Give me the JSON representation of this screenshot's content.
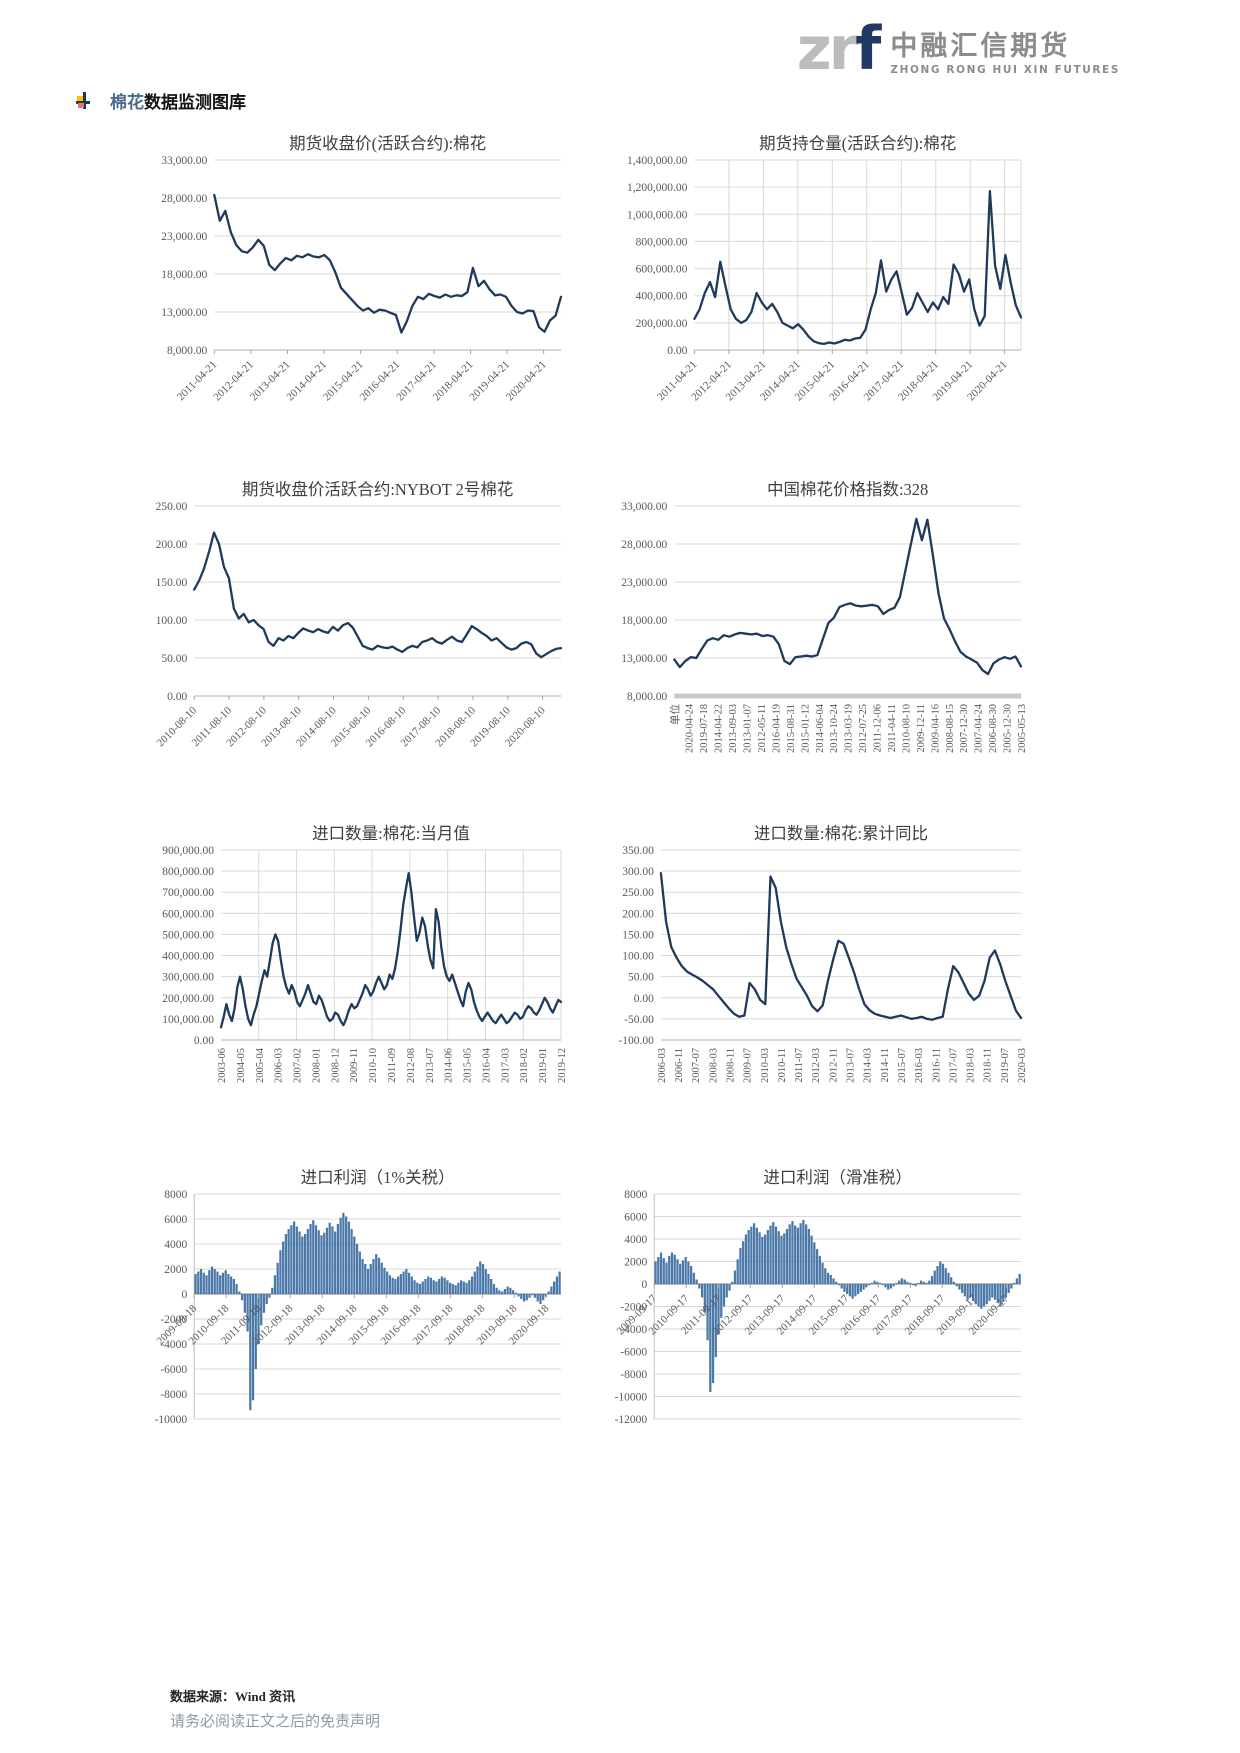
{
  "header": {
    "logo_zr": "zr",
    "logo_f": "f",
    "brand_cn": "中融汇信期货",
    "brand_en": "ZHONG RONG HUI XIN FUTURES"
  },
  "section": {
    "title_highlight": "棉花",
    "title_rest": "数据监测图库"
  },
  "footer": {
    "source": "数据来源：Wind 资讯",
    "disclaimer": "请务必阅读正文之后的免责声明"
  },
  "colors": {
    "line": "#1f3a5a",
    "bar": "#4a78a8",
    "grid": "#d9d9d9",
    "axis": "#bfbfbf",
    "zero_axis": "#9a9a9a",
    "thick_axis": "#c9c9c9",
    "tick_text": "#595959",
    "title_text": "#3f3f3f"
  },
  "chart_data": [
    {
      "name": "futures-close-price-cotton",
      "type": "line",
      "title": "期货收盘价(活跃合约):棉花",
      "ylim": [
        8000,
        33000
      ],
      "y_tick_values": [
        33000,
        28000,
        23000,
        18000,
        13000,
        8000
      ],
      "y_tick_labels": [
        "33,000.00",
        "28,000.00",
        "23,000.00",
        "18,000.00",
        "13,000.00",
        "8,000.00"
      ],
      "x_labels": [
        "2011-04-21",
        "2012-04-21",
        "2013-04-21",
        "2014-04-21",
        "2015-04-21",
        "2016-04-21",
        "2017-04-21",
        "2018-04-21",
        "2019-04-21",
        "2020-04-21"
      ],
      "x_label_style": "rot45",
      "grid_vertical": false,
      "axis_thick": false,
      "values": [
        28400,
        25000,
        26300,
        23500,
        21800,
        21000,
        20800,
        21500,
        22500,
        21700,
        19200,
        18500,
        19400,
        20100,
        19800,
        20400,
        20200,
        20600,
        20300,
        20200,
        20500,
        19800,
        18200,
        16200,
        15400,
        14600,
        13800,
        13200,
        13500,
        12900,
        13300,
        13200,
        12900,
        12600,
        10300,
        11800,
        13800,
        15000,
        14700,
        15400,
        15100,
        14900,
        15300,
        15000,
        15200,
        15100,
        15600,
        18800,
        16400,
        17100,
        16000,
        15200,
        15300,
        15000,
        13800,
        13000,
        12800,
        13200,
        13100,
        11000,
        10400,
        11900,
        12500,
        15000
      ]
    },
    {
      "name": "futures-open-interest-cotton",
      "type": "line",
      "title": "期货持仓量(活跃合约):棉花",
      "ylim": [
        0,
        1400000
      ],
      "y_tick_values": [
        1400000,
        1200000,
        1000000,
        800000,
        600000,
        400000,
        200000,
        0
      ],
      "y_tick_labels": [
        "1,400,000.00",
        "1,200,000.00",
        "1,000,000.00",
        "800,000.00",
        "600,000.00",
        "400,000.00",
        "200,000.00",
        "0.00"
      ],
      "x_labels": [
        "2011-04-21",
        "2012-04-21",
        "2013-04-21",
        "2014-04-21",
        "2015-04-21",
        "2016-04-21",
        "2017-04-21",
        "2018-04-21",
        "2019-04-21",
        "2020-04-21"
      ],
      "x_label_style": "rot45",
      "grid_vertical": true,
      "axis_thick": false,
      "values": [
        230000,
        300000,
        420000,
        500000,
        390000,
        650000,
        470000,
        300000,
        230000,
        200000,
        220000,
        280000,
        420000,
        350000,
        300000,
        340000,
        280000,
        200000,
        180000,
        160000,
        190000,
        150000,
        100000,
        65000,
        50000,
        45000,
        55000,
        48000,
        60000,
        75000,
        70000,
        85000,
        90000,
        150000,
        300000,
        420000,
        660000,
        430000,
        520000,
        580000,
        420000,
        260000,
        310000,
        420000,
        350000,
        280000,
        350000,
        300000,
        390000,
        340000,
        630000,
        560000,
        430000,
        520000,
        300000,
        180000,
        250000,
        1170000,
        620000,
        450000,
        700000,
        500000,
        330000,
        240000
      ]
    },
    {
      "name": "futures-close-price-nybot-cotton2",
      "type": "line",
      "title": "期货收盘价活跃合约:NYBOT 2号棉花",
      "ylim": [
        0,
        250
      ],
      "y_tick_values": [
        250,
        200,
        150,
        100,
        50,
        0
      ],
      "y_tick_labels": [
        "250.00",
        "200.00",
        "150.00",
        "100.00",
        "50.00",
        "0.00"
      ],
      "x_labels": [
        "2010-08-10",
        "2011-08-10",
        "2012-08-10",
        "2013-08-10",
        "2014-08-10",
        "2015-08-10",
        "2016-08-10",
        "2017-08-10",
        "2018-08-10",
        "2019-08-10",
        "2020-08-10"
      ],
      "x_label_style": "rot45",
      "grid_vertical": false,
      "axis_thick": false,
      "values": [
        140,
        152,
        168,
        190,
        215,
        200,
        170,
        155,
        115,
        102,
        108,
        97,
        100,
        93,
        88,
        71,
        66,
        76,
        73,
        79,
        76,
        83,
        89,
        86,
        84,
        88,
        85,
        83,
        91,
        86,
        93,
        96,
        90,
        78,
        66,
        63,
        61,
        66,
        64,
        63,
        65,
        61,
        58,
        63,
        66,
        64,
        71,
        73,
        76,
        71,
        69,
        74,
        78,
        73,
        71,
        81,
        92,
        88,
        83,
        79,
        73,
        76,
        70,
        64,
        61,
        63,
        69,
        71,
        68,
        56,
        51,
        55,
        59,
        62,
        63
      ]
    },
    {
      "name": "china-cotton-price-index-328",
      "type": "line",
      "title": "中国棉花价格指数:328",
      "ylim": [
        8000,
        33000
      ],
      "y_tick_values": [
        33000,
        28000,
        23000,
        18000,
        13000,
        8000
      ],
      "y_tick_labels": [
        "33,000.00",
        "28,000.00",
        "23,000.00",
        "18,000.00",
        "13,000.00",
        "8,000.00"
      ],
      "x_labels": [
        "单位",
        "2020-04-24",
        "2019-07-18",
        "2014-04-22",
        "2013-09-03",
        "2013-01-07",
        "2012-05-11",
        "2016-04-19",
        "2015-08-31",
        "2015-01-12",
        "2014-06-04",
        "2013-10-24",
        "2013-03-19",
        "2012-07-25",
        "2011-12-06",
        "2011-04-11",
        "2010-08-10",
        "2009-12-11",
        "2009-04-16",
        "2008-08-15",
        "2007-12-30",
        "2007-04-24",
        "2006-08-30",
        "2005-12-30",
        "2005-05-13"
      ],
      "x_label_style": "vert",
      "grid_vertical": false,
      "axis_thick": true,
      "values": [
        12800,
        11800,
        12600,
        13100,
        13000,
        14200,
        15300,
        15600,
        15400,
        16000,
        15800,
        16100,
        16300,
        16200,
        16100,
        16200,
        15900,
        16000,
        15800,
        14800,
        12600,
        12200,
        13100,
        13200,
        13300,
        13200,
        13400,
        15500,
        17600,
        18300,
        19700,
        20000,
        20200,
        19900,
        19800,
        19900,
        20000,
        19800,
        18800,
        19300,
        19600,
        21000,
        24500,
        28000,
        31300,
        28500,
        31200,
        26500,
        21500,
        18200,
        16800,
        15200,
        13800,
        13200,
        12800,
        12400,
        11400,
        10900,
        12300,
        12800,
        13100,
        12900,
        13200,
        11900
      ]
    },
    {
      "name": "import-volume-monthly",
      "type": "line",
      "title": "进口数量:棉花:当月值",
      "ylim": [
        0,
        900000
      ],
      "y_tick_values": [
        900000,
        800000,
        700000,
        600000,
        500000,
        400000,
        300000,
        200000,
        100000,
        0
      ],
      "y_tick_labels": [
        "900,000.00",
        "800,000.00",
        "700,000.00",
        "600,000.00",
        "500,000.00",
        "400,000.00",
        "300,000.00",
        "200,000.00",
        "100,000.00",
        "0.00"
      ],
      "x_labels": [
        "2003-06",
        "2004-05",
        "2005-04",
        "2006-03",
        "2007-02",
        "2008-01",
        "2008-12",
        "2009-11",
        "2010-10",
        "2011-09",
        "2012-08",
        "2013-07",
        "2014-06",
        "2015-05",
        "2016-04",
        "2017-03",
        "2018-02",
        "2019-01",
        "2019-12"
      ],
      "x_label_style": "vert",
      "grid_vertical": true,
      "axis_thick": false,
      "values": [
        60000,
        110000,
        170000,
        120000,
        90000,
        150000,
        250000,
        300000,
        240000,
        160000,
        100000,
        70000,
        120000,
        160000,
        220000,
        280000,
        330000,
        300000,
        380000,
        460000,
        500000,
        470000,
        380000,
        300000,
        250000,
        220000,
        260000,
        230000,
        180000,
        160000,
        190000,
        220000,
        260000,
        220000,
        180000,
        170000,
        210000,
        190000,
        150000,
        110000,
        90000,
        100000,
        130000,
        120000,
        90000,
        70000,
        100000,
        140000,
        170000,
        150000,
        160000,
        190000,
        220000,
        260000,
        240000,
        210000,
        230000,
        270000,
        300000,
        270000,
        240000,
        260000,
        310000,
        290000,
        340000,
        420000,
        520000,
        640000,
        720000,
        790000,
        700000,
        580000,
        470000,
        510000,
        580000,
        540000,
        450000,
        380000,
        340000,
        620000,
        560000,
        440000,
        350000,
        300000,
        280000,
        310000,
        270000,
        230000,
        190000,
        160000,
        230000,
        270000,
        240000,
        180000,
        140000,
        110000,
        90000,
        110000,
        130000,
        110000,
        90000,
        80000,
        100000,
        120000,
        100000,
        80000,
        90000,
        110000,
        130000,
        120000,
        100000,
        110000,
        140000,
        160000,
        150000,
        130000,
        120000,
        140000,
        170000,
        200000,
        180000,
        150000,
        130000,
        160000,
        190000,
        180000
      ]
    },
    {
      "name": "import-volume-cumulative-yoy",
      "type": "line",
      "title": "进口数量:棉花:累计同比",
      "ylim": [
        -100,
        350
      ],
      "y_tick_values": [
        350,
        300,
        250,
        200,
        150,
        100,
        50,
        0,
        -50,
        -100
      ],
      "y_tick_labels": [
        "350.00",
        "300.00",
        "250.00",
        "200.00",
        "150.00",
        "100.00",
        "50.00",
        "0.00",
        "-50.00",
        "-100.00"
      ],
      "x_labels": [
        "2006-03",
        "2006-11",
        "2007-07",
        "2008-03",
        "2008-11",
        "2009-07",
        "2010-03",
        "2010-11",
        "2011-07",
        "2012-03",
        "2012-11",
        "2013-07",
        "2014-03",
        "2014-11",
        "2015-07",
        "2016-03",
        "2016-11",
        "2017-07",
        "2018-03",
        "2018-11",
        "2019-07",
        "2020-03"
      ],
      "x_label_style": "vert",
      "grid_vertical": false,
      "axis_thick": false,
      "values": [
        295,
        180,
        120,
        95,
        75,
        62,
        55,
        48,
        40,
        30,
        20,
        5,
        -10,
        -25,
        -38,
        -45,
        -42,
        35,
        20,
        -5,
        -15,
        287,
        260,
        180,
        120,
        80,
        45,
        25,
        5,
        -20,
        -32,
        -18,
        40,
        90,
        135,
        128,
        95,
        60,
        20,
        -15,
        -30,
        -38,
        -42,
        -45,
        -48,
        -45,
        -42,
        -46,
        -50,
        -48,
        -45,
        -50,
        -52,
        -48,
        -45,
        20,
        75,
        60,
        35,
        10,
        -5,
        5,
        40,
        95,
        112,
        80,
        40,
        5,
        -30,
        -48
      ]
    },
    {
      "name": "import-profit-1pct-tariff",
      "type": "bar",
      "title": "进口利润（1%关税）",
      "ylim": [
        -10000,
        8000
      ],
      "y_tick_values": [
        8000,
        6000,
        4000,
        2000,
        0,
        -2000,
        -4000,
        -6000,
        -8000,
        -10000
      ],
      "y_tick_labels": [
        "8000",
        "6000",
        "4000",
        "2000",
        "0",
        "-2000",
        "-4000",
        "-6000",
        "-8000",
        "-10000"
      ],
      "x_labels": [
        "2009-09-18",
        "2010-09-18",
        "2011-09-18",
        "2012-09-18",
        "2013-09-18",
        "2014-09-18",
        "2015-09-18",
        "2016-09-18",
        "2017-09-18",
        "2018-09-18",
        "2019-09-18",
        "2020-09-18"
      ],
      "x_label_style": "rot45",
      "grid_vertical": false,
      "axis_thick": false,
      "values": [
        1600,
        1800,
        2000,
        1700,
        1500,
        1900,
        2200,
        2000,
        1800,
        1500,
        1700,
        1900,
        1600,
        1400,
        1200,
        800,
        200,
        -500,
        -1500,
        -3000,
        -9300,
        -8500,
        -6000,
        -4000,
        -2500,
        -1500,
        -800,
        -300,
        500,
        1500,
        2500,
        3500,
        4200,
        4800,
        5200,
        5500,
        5800,
        5400,
        5000,
        4600,
        4800,
        5200,
        5600,
        5900,
        5500,
        5100,
        4700,
        4900,
        5300,
        5700,
        5400,
        5000,
        5600,
        6100,
        6500,
        6200,
        5800,
        5200,
        4600,
        4000,
        3400,
        2800,
        2400,
        2000,
        2400,
        2800,
        3200,
        2900,
        2500,
        2100,
        1800,
        1500,
        1300,
        1200,
        1400,
        1600,
        1800,
        2000,
        1700,
        1400,
        1100,
        900,
        800,
        1000,
        1200,
        1400,
        1300,
        1100,
        1000,
        1200,
        1400,
        1300,
        1100,
        900,
        800,
        700,
        900,
        1100,
        1000,
        900,
        1100,
        1400,
        1800,
        2200,
        2600,
        2400,
        2000,
        1600,
        1200,
        800,
        500,
        300,
        200,
        400,
        600,
        500,
        300,
        100,
        -200,
        -400,
        -600,
        -500,
        -300,
        -100,
        -300,
        -600,
        -800,
        -500,
        -200,
        200,
        600,
        1000,
        1400,
        1800
      ]
    },
    {
      "name": "import-profit-sliding-tax",
      "type": "bar",
      "title": "进口利润（滑准税）",
      "ylim": [
        -12000,
        8000
      ],
      "y_tick_values": [
        8000,
        6000,
        4000,
        2000,
        0,
        -2000,
        -4000,
        -6000,
        -8000,
        -10000,
        -12000
      ],
      "y_tick_labels": [
        "8000",
        "6000",
        "4000",
        "2000",
        "0",
        "-2000",
        "-4000",
        "-6000",
        "-8000",
        "-10000",
        "-12000"
      ],
      "x_labels": [
        "2009-09-17",
        "2010-09-17",
        "2011-09-17",
        "2012-09-17",
        "2013-09-17",
        "2014-09-17",
        "2015-09-17",
        "2016-09-17",
        "2017-09-17",
        "2018-09-17",
        "2019-09-17",
        "2020-09-17"
      ],
      "x_label_style": "rot45",
      "grid_vertical": false,
      "axis_thick": false,
      "values": [
        2000,
        2400,
        2800,
        2300,
        1900,
        2500,
        2800,
        2600,
        2200,
        1800,
        2100,
        2400,
        2000,
        1600,
        1000,
        400,
        -400,
        -1200,
        -2500,
        -5000,
        -9600,
        -8800,
        -6500,
        -4500,
        -3000,
        -2000,
        -1200,
        -600,
        200,
        1200,
        2200,
        3200,
        3800,
        4400,
        4800,
        5100,
        5400,
        5000,
        4600,
        4200,
        4400,
        4800,
        5200,
        5500,
        5100,
        4700,
        4300,
        4500,
        4900,
        5300,
        5600,
        5200,
        5000,
        5400,
        5700,
        5300,
        4900,
        4300,
        3700,
        3100,
        2500,
        1900,
        1400,
        1000,
        800,
        500,
        200,
        -100,
        -400,
        -700,
        -900,
        -1100,
        -1300,
        -1100,
        -900,
        -700,
        -500,
        -300,
        -100,
        100,
        300,
        200,
        100,
        -100,
        -300,
        -500,
        -400,
        -200,
        100,
        300,
        500,
        400,
        200,
        100,
        -100,
        -200,
        100,
        300,
        200,
        100,
        300,
        700,
        1200,
        1600,
        2000,
        1800,
        1400,
        1000,
        600,
        200,
        -200,
        -500,
        -800,
        -1100,
        -1400,
        -1200,
        -1500,
        -1800,
        -2000,
        -2200,
        -2000,
        -1800,
        -1500,
        -1200,
        -1400,
        -1700,
        -2000,
        -1600,
        -1200,
        -800,
        -400,
        100,
        500,
        900
      ]
    }
  ]
}
